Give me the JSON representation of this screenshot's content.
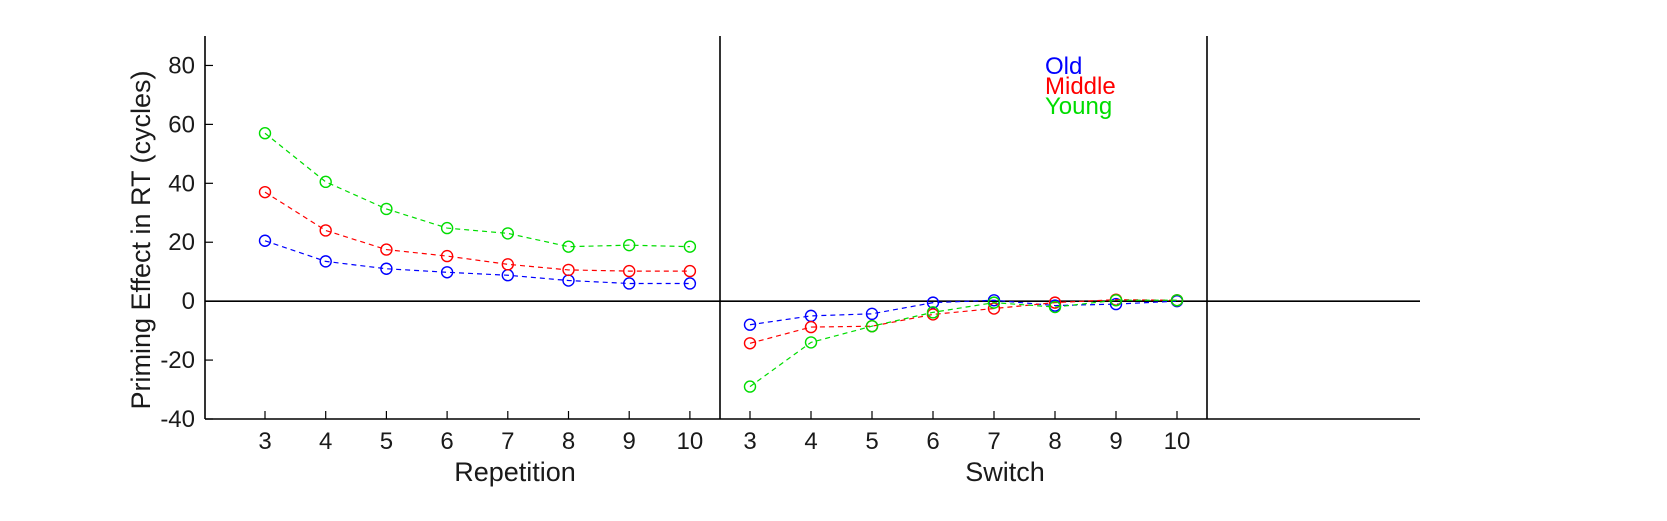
{
  "chart_data": {
    "type": "line",
    "ylabel": "Priming Effect in RT (cycles)",
    "ylim": [
      -40,
      90
    ],
    "yticks": [
      -40,
      -20,
      0,
      20,
      40,
      60,
      80
    ],
    "grid": false,
    "legend": "top-right",
    "panels": [
      {
        "name": "Repetition",
        "xlabel": "Repetition",
        "categories": [
          "3",
          "4",
          "5",
          "6",
          "7",
          "8",
          "9",
          "10"
        ],
        "series": [
          {
            "name": "Old",
            "color": "#0000ff",
            "values": [
              20.5,
              13.5,
              11,
              9.8,
              8.8,
              7,
              6,
              6
            ]
          },
          {
            "name": "Middle",
            "color": "#ff0000",
            "values": [
              37,
              24,
              17.5,
              15.3,
              12.5,
              10.6,
              10.2,
              10.2
            ]
          },
          {
            "name": "Young",
            "color": "#00dd00",
            "values": [
              57,
              40.5,
              31.3,
              24.8,
              23,
              18.5,
              19,
              18.5
            ]
          }
        ]
      },
      {
        "name": "Switch",
        "xlabel": "Switch",
        "categories": [
          "3",
          "4",
          "5",
          "6",
          "7",
          "8",
          "9",
          "10"
        ],
        "series": [
          {
            "name": "Old",
            "color": "#0000ff",
            "values": [
              -8,
              -5,
              -4.3,
              -0.5,
              0.3,
              -1.5,
              -1,
              0
            ]
          },
          {
            "name": "Middle",
            "color": "#ff0000",
            "values": [
              -14.3,
              -8.8,
              -8.5,
              -4.5,
              -2.5,
              -0.5,
              0.5,
              0.3
            ]
          },
          {
            "name": "Young",
            "color": "#00dd00",
            "values": [
              -29,
              -14,
              -8.5,
              -3.8,
              -0.5,
              -2,
              0.3,
              0.3
            ]
          }
        ]
      }
    ]
  },
  "legend": {
    "items": [
      {
        "label": "Old",
        "color": "#0000ff"
      },
      {
        "label": "Middle",
        "color": "#ff0000"
      },
      {
        "label": "Young",
        "color": "#00dd00"
      }
    ]
  }
}
